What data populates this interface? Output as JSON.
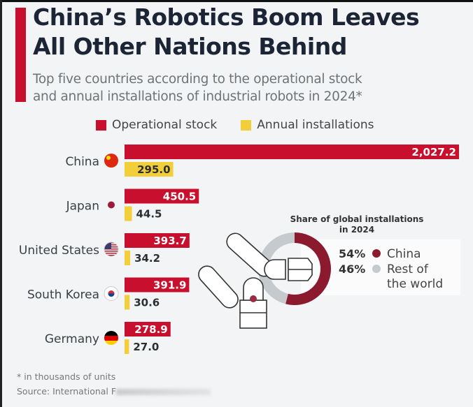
{
  "title_lines": [
    "China’s Robotics Boom Leaves",
    "All Other Nations Behind"
  ],
  "subtitle_lines": [
    "Top five countries according to the operational stock",
    "and annual installations of industrial robots in 2024*"
  ],
  "footnote": "* in thousands of units",
  "source": "Source: International F",
  "chart_data": [
    {
      "type": "bar",
      "orientation": "horizontal",
      "categories": [
        "China",
        "Japan",
        "United States",
        "South Korea",
        "Germany"
      ],
      "series": [
        {
          "name": "Operational stock",
          "color": "#c8102e",
          "values": [
            2027.2,
            450.5,
            393.7,
            391.9,
            278.9
          ],
          "labels": [
            "2,027.2",
            "450.5",
            "393.7",
            "391.9",
            "278.9"
          ]
        },
        {
          "name": "Annual installations",
          "color": "#f2cf3a",
          "values": [
            295.0,
            44.5,
            34.2,
            30.6,
            27.0
          ],
          "labels": [
            "295.0",
            "44.5",
            "34.2",
            "30.6",
            "27.0"
          ]
        }
      ],
      "flag_icons": [
        "china-flag-icon",
        "japan-flag-icon",
        "usa-flag-icon",
        "south-korea-flag-icon",
        "germany-flag-icon"
      ],
      "legend": "top"
    },
    {
      "type": "pie",
      "style": "donut",
      "title_lines": [
        "Share of global installations",
        "in 2024"
      ],
      "slices": [
        {
          "label": "China",
          "value": 54,
          "value_label": "54%",
          "color": "#8b1a2e"
        },
        {
          "label": "Rest of the world",
          "label_lines": [
            "Rest of",
            "the world"
          ],
          "value": 46,
          "value_label": "46%",
          "color": "#c4cacd"
        }
      ]
    }
  ]
}
